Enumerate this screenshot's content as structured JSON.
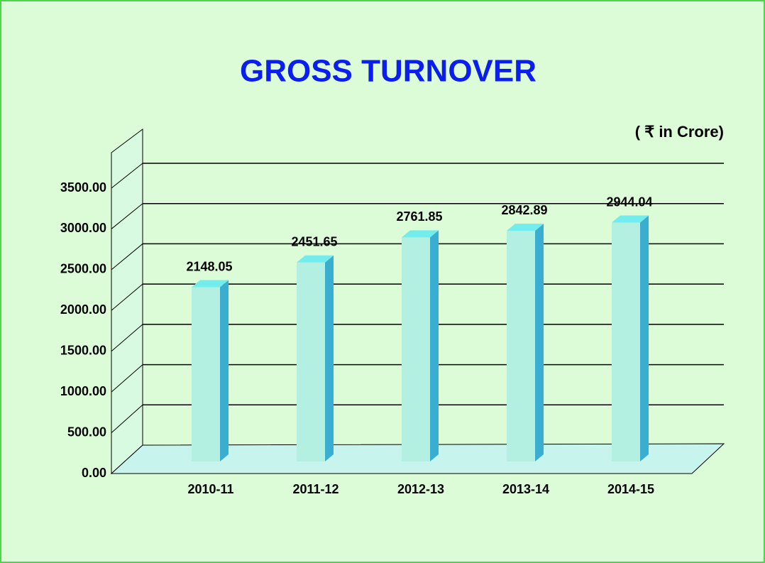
{
  "chart_data": {
    "type": "bar3d",
    "title": "GROSS TURNOVER",
    "unit_label": "( ₹ in Crore)",
    "categories": [
      "2010-11",
      "2011-12",
      "2012-13",
      "2013-14",
      "2014-15"
    ],
    "values": [
      2148.05,
      2451.65,
      2761.85,
      2842.89,
      2944.04
    ],
    "ylim": [
      0,
      3500
    ],
    "yticks": [
      {
        "value": 0,
        "label": "0.00"
      },
      {
        "value": 500,
        "label": "500.00"
      },
      {
        "value": 1000,
        "label": "1000.00"
      },
      {
        "value": 1500,
        "label": "1500.00"
      },
      {
        "value": 2000,
        "label": "2000.00"
      },
      {
        "value": 2500,
        "label": "2500.00"
      },
      {
        "value": 3000,
        "label": "3000.00"
      },
      {
        "value": 3500,
        "label": "3500.00"
      }
    ],
    "grid": true,
    "colors": {
      "front": "#b3f0e2",
      "side": "#3aaed0",
      "top": "#72ecec"
    }
  }
}
